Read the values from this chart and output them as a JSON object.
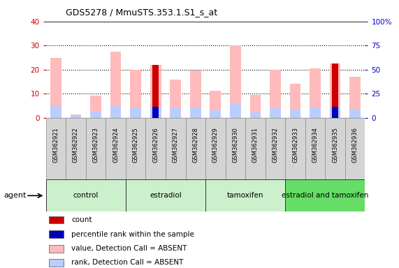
{
  "title": "GDS5278 / MmuSTS.353.1.S1_s_at",
  "samples": [
    "GSM362921",
    "GSM362922",
    "GSM362923",
    "GSM362924",
    "GSM362925",
    "GSM362926",
    "GSM362927",
    "GSM362928",
    "GSM362929",
    "GSM362930",
    "GSM362931",
    "GSM362932",
    "GSM362933",
    "GSM362934",
    "GSM362935",
    "GSM362936"
  ],
  "groups": [
    {
      "name": "control",
      "color": "#ccf0cc",
      "samples": [
        0,
        1,
        2,
        3
      ]
    },
    {
      "name": "estradiol",
      "color": "#ccf0cc",
      "samples": [
        4,
        5,
        6,
        7
      ]
    },
    {
      "name": "tamoxifen",
      "color": "#ccf0cc",
      "samples": [
        8,
        9,
        10,
        11
      ]
    },
    {
      "name": "estradiol and tamoxifen",
      "color": "#66dd66",
      "samples": [
        12,
        13,
        14,
        15
      ]
    }
  ],
  "value_absent": [
    25.0,
    1.5,
    9.2,
    27.5,
    20.0,
    22.0,
    15.8,
    19.8,
    11.3,
    30.0,
    9.5,
    20.0,
    14.3,
    20.5,
    22.5,
    17.2
  ],
  "rank_absent": [
    12.5,
    2.0,
    6.5,
    12.0,
    10.5,
    11.5,
    9.8,
    10.8,
    8.0,
    15.0,
    6.0,
    10.0,
    9.0,
    11.0,
    11.5,
    9.5
  ],
  "count": [
    0,
    0,
    0,
    0,
    0,
    22.0,
    0,
    0,
    0,
    0,
    0,
    0,
    0,
    0,
    22.5,
    0
  ],
  "percentile": [
    0,
    0,
    0,
    0,
    0,
    11.5,
    0,
    0,
    0,
    0,
    0,
    0,
    0,
    0,
    11.5,
    0
  ],
  "ylim_left": [
    0,
    40
  ],
  "ylim_right": [
    0,
    100
  ],
  "left_yticks": [
    0,
    10,
    20,
    30,
    40
  ],
  "right_yticks": [
    0,
    25,
    50,
    75,
    100
  ],
  "right_yticklabels": [
    "0",
    "25",
    "50",
    "75",
    "100%"
  ],
  "left_tick_color": "#cc0000",
  "right_tick_color": "#0000cc",
  "count_color": "#cc0000",
  "percentile_color": "#0000bb",
  "value_absent_color": "#ffbbbb",
  "rank_absent_color": "#bbccff",
  "cell_bg": "#d4d4d4",
  "legend_items": [
    {
      "label": "count",
      "color": "#cc0000"
    },
    {
      "label": "percentile rank within the sample",
      "color": "#0000bb"
    },
    {
      "label": "value, Detection Call = ABSENT",
      "color": "#ffbbbb"
    },
    {
      "label": "rank, Detection Call = ABSENT",
      "color": "#bbccff"
    }
  ]
}
